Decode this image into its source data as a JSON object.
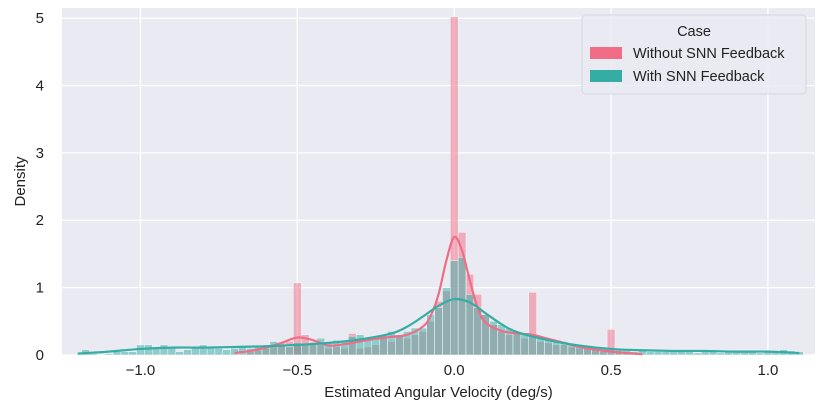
{
  "chart_data": {
    "type": "histogram",
    "xlabel": "Estimated Angular Velocity (deg/s)",
    "ylabel": "Density",
    "xlim": [
      -1.25,
      1.15
    ],
    "ylim": [
      0,
      5.15
    ],
    "x_ticks": [
      -1.0,
      -0.5,
      0.0,
      0.5,
      1.0
    ],
    "x_tick_labels": [
      "−1.0",
      "−0.5",
      "0.0",
      "0.5",
      "1.0"
    ],
    "y_ticks": [
      0,
      1,
      2,
      3,
      4,
      5
    ],
    "y_tick_labels": [
      "0",
      "1",
      "2",
      "3",
      "4",
      "5"
    ],
    "grid": true,
    "legend": {
      "title": "Case",
      "placement": "top-right"
    },
    "bin_width": 0.025,
    "series": [
      {
        "name": "Without SNN Feedback",
        "color": "#f06d85",
        "bins": [
          [
            -0.65,
            0.05
          ],
          [
            -0.625,
            0.07
          ],
          [
            -0.6,
            0.1
          ],
          [
            -0.575,
            0.12
          ],
          [
            -0.55,
            0.18
          ],
          [
            -0.525,
            0.2
          ],
          [
            -0.5,
            0.2
          ],
          [
            -0.475,
            0.3
          ],
          [
            -0.5,
            1.07
          ],
          [
            -0.45,
            0.2
          ],
          [
            -0.425,
            0.15
          ],
          [
            -0.4,
            0.1
          ],
          [
            -0.375,
            0.12
          ],
          [
            -0.35,
            0.1
          ],
          [
            -0.325,
            0.32
          ],
          [
            -0.3,
            0.1
          ],
          [
            -0.275,
            0.12
          ],
          [
            -0.25,
            0.15
          ],
          [
            -0.225,
            0.3
          ],
          [
            -0.2,
            0.2
          ],
          [
            -0.175,
            0.3
          ],
          [
            -0.15,
            0.25
          ],
          [
            -0.125,
            0.3
          ],
          [
            -0.1,
            0.35
          ],
          [
            -0.075,
            0.5
          ],
          [
            -0.05,
            0.8
          ],
          [
            -0.025,
            0.95
          ],
          [
            0.0,
            5.02
          ],
          [
            0.025,
            1.82
          ],
          [
            0.05,
            1.2
          ],
          [
            0.075,
            0.9
          ],
          [
            0.1,
            0.6
          ],
          [
            0.125,
            0.45
          ],
          [
            0.15,
            0.35
          ],
          [
            0.175,
            0.3
          ],
          [
            0.2,
            0.35
          ],
          [
            0.225,
            0.25
          ],
          [
            0.25,
            0.93
          ],
          [
            0.275,
            0.2
          ],
          [
            0.3,
            0.18
          ],
          [
            0.325,
            0.15
          ],
          [
            0.35,
            0.15
          ],
          [
            0.375,
            0.12
          ],
          [
            0.4,
            0.1
          ],
          [
            0.425,
            0.1
          ],
          [
            0.45,
            0.08
          ],
          [
            0.475,
            0.05
          ],
          [
            0.5,
            0.38
          ],
          [
            0.525,
            0.05
          ],
          [
            0.55,
            0.05
          ]
        ],
        "kde": [
          [
            -0.7,
            0.03
          ],
          [
            -0.65,
            0.06
          ],
          [
            -0.6,
            0.11
          ],
          [
            -0.55,
            0.18
          ],
          [
            -0.5,
            0.26
          ],
          [
            -0.45,
            0.22
          ],
          [
            -0.4,
            0.14
          ],
          [
            -0.35,
            0.16
          ],
          [
            -0.3,
            0.2
          ],
          [
            -0.25,
            0.24
          ],
          [
            -0.2,
            0.27
          ],
          [
            -0.15,
            0.3
          ],
          [
            -0.1,
            0.42
          ],
          [
            -0.075,
            0.58
          ],
          [
            -0.05,
            0.9
          ],
          [
            -0.025,
            1.4
          ],
          [
            0.0,
            1.75
          ],
          [
            0.025,
            1.55
          ],
          [
            0.05,
            1.1
          ],
          [
            0.075,
            0.7
          ],
          [
            0.1,
            0.48
          ],
          [
            0.15,
            0.36
          ],
          [
            0.2,
            0.32
          ],
          [
            0.25,
            0.3
          ],
          [
            0.3,
            0.24
          ],
          [
            0.35,
            0.18
          ],
          [
            0.4,
            0.12
          ],
          [
            0.45,
            0.08
          ],
          [
            0.5,
            0.05
          ],
          [
            0.55,
            0.03
          ],
          [
            0.6,
            0.01
          ]
        ]
      },
      {
        "name": "With SNN Feedback",
        "color": "#36ada4",
        "bins": [
          [
            -1.175,
            0.08
          ],
          [
            -1.15,
            0.02
          ],
          [
            -1.125,
            0.0
          ],
          [
            -1.1,
            0.02
          ],
          [
            -1.075,
            0.05
          ],
          [
            -1.05,
            0.05
          ],
          [
            -1.025,
            0.05
          ],
          [
            -1.0,
            0.15
          ],
          [
            -0.975,
            0.15
          ],
          [
            -0.95,
            0.1
          ],
          [
            -0.925,
            0.15
          ],
          [
            -0.9,
            0.12
          ],
          [
            -0.875,
            0.05
          ],
          [
            -0.85,
            0.08
          ],
          [
            -0.825,
            0.1
          ],
          [
            -0.8,
            0.15
          ],
          [
            -0.775,
            0.1
          ],
          [
            -0.75,
            0.1
          ],
          [
            -0.725,
            0.08
          ],
          [
            -0.7,
            0.1
          ],
          [
            -0.675,
            0.12
          ],
          [
            -0.65,
            0.1
          ],
          [
            -0.625,
            0.12
          ],
          [
            -0.6,
            0.12
          ],
          [
            -0.575,
            0.2
          ],
          [
            -0.55,
            0.15
          ],
          [
            -0.525,
            0.12
          ],
          [
            -0.5,
            0.18
          ],
          [
            -0.475,
            0.15
          ],
          [
            -0.45,
            0.18
          ],
          [
            -0.425,
            0.25
          ],
          [
            -0.4,
            0.18
          ],
          [
            -0.375,
            0.22
          ],
          [
            -0.35,
            0.2
          ],
          [
            -0.325,
            0.28
          ],
          [
            -0.3,
            0.3
          ],
          [
            -0.275,
            0.25
          ],
          [
            -0.25,
            0.28
          ],
          [
            -0.225,
            0.3
          ],
          [
            -0.2,
            0.35
          ],
          [
            -0.175,
            0.3
          ],
          [
            -0.15,
            0.35
          ],
          [
            -0.125,
            0.4
          ],
          [
            -0.1,
            0.4
          ],
          [
            -0.075,
            0.6
          ],
          [
            -0.05,
            0.7
          ],
          [
            -0.025,
            1.0
          ],
          [
            0.0,
            1.4
          ],
          [
            0.025,
            1.45
          ],
          [
            0.05,
            0.9
          ],
          [
            0.075,
            0.7
          ],
          [
            0.1,
            0.6
          ],
          [
            0.125,
            0.5
          ],
          [
            0.15,
            0.45
          ],
          [
            0.175,
            0.4
          ],
          [
            0.2,
            0.35
          ],
          [
            0.225,
            0.3
          ],
          [
            0.25,
            0.3
          ],
          [
            0.275,
            0.25
          ],
          [
            0.3,
            0.25
          ],
          [
            0.325,
            0.2
          ],
          [
            0.35,
            0.2
          ],
          [
            0.375,
            0.15
          ],
          [
            0.4,
            0.15
          ],
          [
            0.425,
            0.12
          ],
          [
            0.45,
            0.12
          ],
          [
            0.475,
            0.1
          ],
          [
            0.5,
            0.1
          ],
          [
            0.525,
            0.08
          ],
          [
            0.55,
            0.08
          ],
          [
            0.575,
            0.05
          ],
          [
            0.6,
            0.08
          ],
          [
            0.625,
            0.05
          ],
          [
            0.65,
            0.05
          ],
          [
            0.675,
            0.05
          ],
          [
            0.7,
            0.08
          ],
          [
            0.725,
            0.05
          ],
          [
            0.75,
            0.05
          ],
          [
            0.775,
            0.03
          ],
          [
            0.8,
            0.08
          ],
          [
            0.825,
            0.05
          ],
          [
            0.85,
            0.03
          ],
          [
            0.875,
            0.05
          ],
          [
            0.9,
            0.06
          ],
          [
            0.925,
            0.05
          ],
          [
            0.95,
            0.05
          ],
          [
            0.975,
            0.03
          ],
          [
            1.0,
            0.05
          ],
          [
            1.025,
            0.05
          ],
          [
            1.05,
            0.08
          ],
          [
            1.075,
            0.06
          ],
          [
            1.1,
            0.05
          ]
        ],
        "kde": [
          [
            -1.2,
            0.02
          ],
          [
            -1.1,
            0.05
          ],
          [
            -1.0,
            0.09
          ],
          [
            -0.9,
            0.11
          ],
          [
            -0.8,
            0.11
          ],
          [
            -0.7,
            0.12
          ],
          [
            -0.6,
            0.13
          ],
          [
            -0.5,
            0.15
          ],
          [
            -0.4,
            0.18
          ],
          [
            -0.3,
            0.23
          ],
          [
            -0.2,
            0.32
          ],
          [
            -0.15,
            0.42
          ],
          [
            -0.1,
            0.57
          ],
          [
            -0.05,
            0.73
          ],
          [
            0.0,
            0.83
          ],
          [
            0.05,
            0.78
          ],
          [
            0.1,
            0.62
          ],
          [
            0.15,
            0.46
          ],
          [
            0.2,
            0.34
          ],
          [
            0.3,
            0.22
          ],
          [
            0.4,
            0.14
          ],
          [
            0.5,
            0.09
          ],
          [
            0.6,
            0.07
          ],
          [
            0.7,
            0.06
          ],
          [
            0.8,
            0.06
          ],
          [
            0.9,
            0.05
          ],
          [
            1.0,
            0.05
          ],
          [
            1.1,
            0.03
          ]
        ]
      }
    ]
  }
}
